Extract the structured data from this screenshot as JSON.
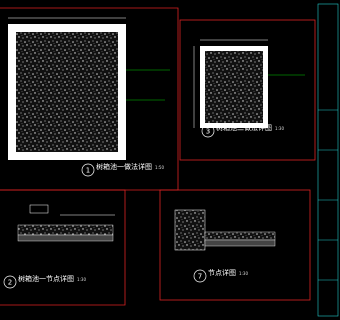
{
  "views": [
    {
      "number": "1",
      "title": "树箱池一做法详图",
      "scale": "1:50"
    },
    {
      "number": "3",
      "title": "树箱池二做法详图",
      "scale": "1:30"
    },
    {
      "number": "2",
      "title": "树箱池一节点详图",
      "scale": "1:30"
    },
    {
      "number": "7",
      "title": "节点详图",
      "scale": "1:30"
    }
  ]
}
